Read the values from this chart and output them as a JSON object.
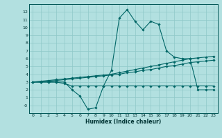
{
  "xlabel": "Humidex (Indice chaleur)",
  "background_color": "#b2e0e0",
  "grid_color": "#8fc8c8",
  "line_color": "#006666",
  "x_values": [
    0,
    1,
    2,
    3,
    4,
    5,
    6,
    7,
    8,
    9,
    10,
    11,
    12,
    13,
    14,
    15,
    16,
    17,
    18,
    19,
    20,
    21,
    22,
    23
  ],
  "line1_y": [
    3,
    3,
    3,
    3,
    3,
    2.0,
    1.2,
    -0.5,
    -0.3,
    2.5,
    4.5,
    11.2,
    12.3,
    10.8,
    9.7,
    10.8,
    10.4,
    7.0,
    6.2,
    6.0,
    6.0,
    2.0,
    2.0,
    2.0
  ],
  "line2_y": [
    3,
    3,
    3,
    3,
    2.8,
    2.5,
    2.5,
    2.5,
    2.5,
    2.5,
    2.5,
    2.5,
    2.5,
    2.5,
    2.5,
    2.5,
    2.5,
    2.5,
    2.5,
    2.5,
    2.5,
    2.5,
    2.5,
    2.5
  ],
  "line3_y": [
    3.0,
    3.1,
    3.2,
    3.3,
    3.4,
    3.5,
    3.6,
    3.7,
    3.8,
    3.9,
    4.0,
    4.2,
    4.4,
    4.6,
    4.8,
    5.0,
    5.2,
    5.4,
    5.6,
    5.8,
    6.0,
    6.1,
    6.2,
    6.3
  ],
  "line4_y": [
    3.0,
    3.0,
    3.1,
    3.2,
    3.3,
    3.4,
    3.5,
    3.6,
    3.7,
    3.8,
    3.9,
    4.0,
    4.2,
    4.3,
    4.5,
    4.6,
    4.8,
    5.0,
    5.1,
    5.3,
    5.5,
    5.6,
    5.7,
    5.8
  ],
  "ylim": [
    -1,
    13
  ],
  "xlim": [
    -0.5,
    23.5
  ],
  "ytick_labels": [
    "-0",
    "1",
    "2",
    "3",
    "4",
    "5",
    "6",
    "7",
    "8",
    "9",
    "10",
    "11",
    "12"
  ],
  "ytick_vals": [
    0,
    1,
    2,
    3,
    4,
    5,
    6,
    7,
    8,
    9,
    10,
    11,
    12
  ],
  "xtick_vals": [
    0,
    1,
    2,
    3,
    4,
    5,
    6,
    7,
    8,
    9,
    10,
    11,
    12,
    13,
    14,
    15,
    16,
    17,
    18,
    19,
    20,
    21,
    22,
    23
  ]
}
